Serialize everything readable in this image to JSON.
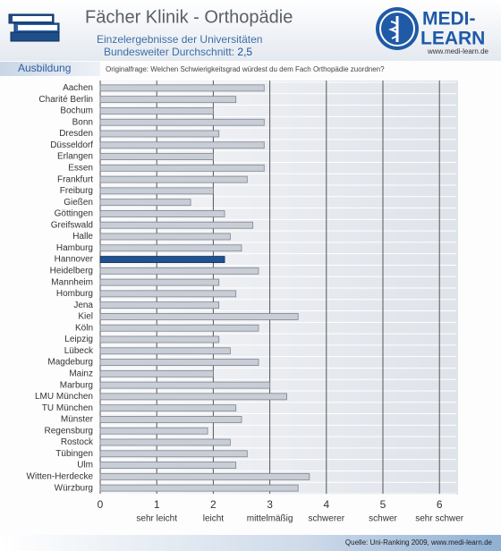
{
  "header": {
    "title": "Fächer Klinik - Orthopädie",
    "subtitle": "Einzelergebnisse der Universitäten",
    "average_label": "Bundesweiter Durchschnitt:",
    "average": "2,5",
    "logo_top": "MEDI-",
    "logo_bottom": "LEARN",
    "url": "www.medi-learn.de",
    "tab": "Ausbildung",
    "question": "Originalfrage: Welchen Schwierigkeitsgrad würdest du dem Fach Orthopädie zuordnen?"
  },
  "chart_data": {
    "type": "hbar",
    "categories": [
      "Aachen",
      "Charité Berlin",
      "Bochum",
      "Bonn",
      "Dresden",
      "Düsseldorf",
      "Erlangen",
      "Essen",
      "Frankfurt",
      "Freiburg",
      "Gießen",
      "Göttingen",
      "Greifswald",
      "Halle",
      "Hamburg",
      "Hannover",
      "Heidelberg",
      "Mannheim",
      "Homburg",
      "Jena",
      "Kiel",
      "Köln",
      "Leipzig",
      "Lübeck",
      "Magdeburg",
      "Mainz",
      "Marburg",
      "LMU München",
      "TU München",
      "Münster",
      "Regensburg",
      "Rostock",
      "Tübingen",
      "Ulm",
      "Witten-Herdecke",
      "Würzburg"
    ],
    "values": [
      2.9,
      2.4,
      2.0,
      2.9,
      2.1,
      2.9,
      2.0,
      2.9,
      2.6,
      2.0,
      1.6,
      2.2,
      2.7,
      2.3,
      2.5,
      2.2,
      2.8,
      2.1,
      2.4,
      2.1,
      3.5,
      2.8,
      2.1,
      2.3,
      2.8,
      2.0,
      3.0,
      3.3,
      2.4,
      2.5,
      1.9,
      2.3,
      2.6,
      2.4,
      3.7,
      3.5
    ],
    "color": "#c9ced6",
    "highlight": "Hannover",
    "highlight_color": "#1f528f",
    "xlim": [
      0,
      6.3
    ],
    "xticks": [
      0,
      1,
      2,
      3,
      4,
      5,
      6
    ],
    "grid": true,
    "scale_labels": [
      {
        "value": 1,
        "label": "sehr leicht"
      },
      {
        "value": 2,
        "label": "leicht"
      },
      {
        "value": 3,
        "label": "mittelmäßig"
      },
      {
        "value": 4,
        "label": "schwerer"
      },
      {
        "value": 5,
        "label": "schwer"
      },
      {
        "value": 6,
        "label": "sehr schwer"
      }
    ]
  },
  "footer": {
    "source": "Quelle: Uni-Ranking 2009, www.medi-learn.de"
  }
}
